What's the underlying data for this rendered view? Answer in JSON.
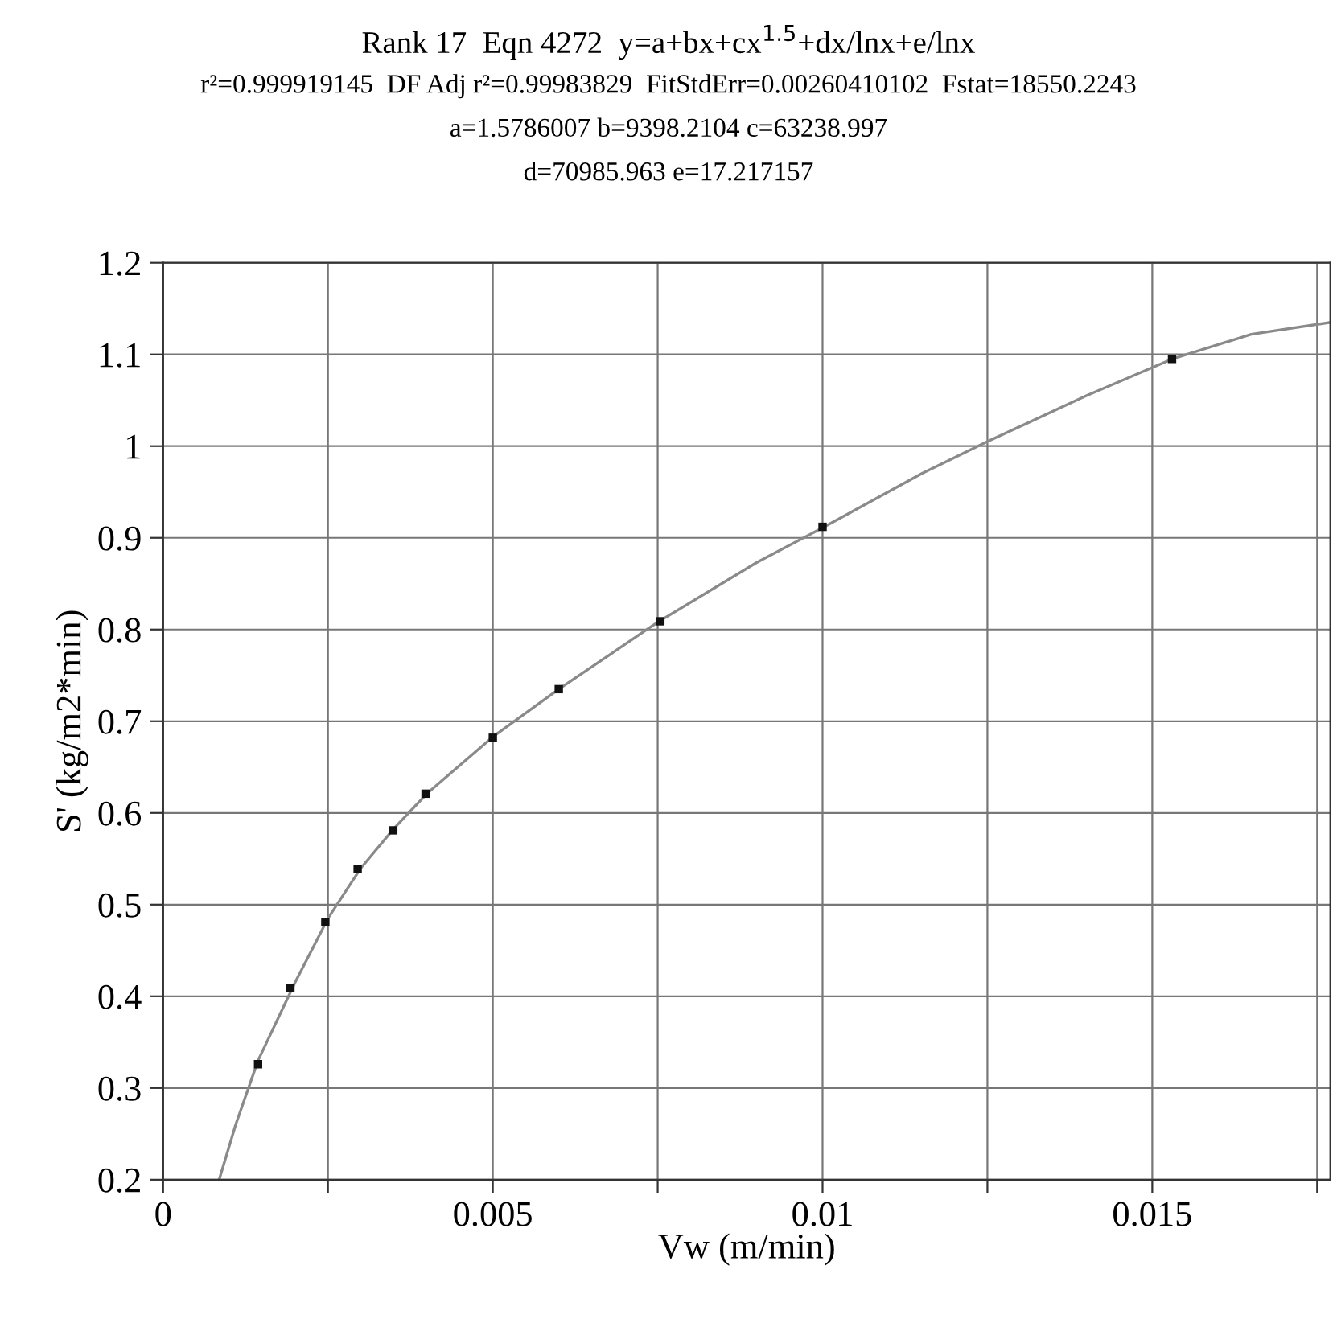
{
  "chart_data": {
    "type": "scatter",
    "title": "Rank 17  Eqn 4272  y=a+bx+cx$^{1.5}$+dx/lnx+e/lnx",
    "subtitle": "r²=0.999919145  DF Adj r²=0.99983829  FitStdErr=0.00260410102  Fstat=18550.2243",
    "annotations": [
      "a=1.5786007 b=9398.2104 c=63238.997",
      "d=70985.963 e=17.217157"
    ],
    "xlabel": "Vw (m/min)",
    "ylabel": "S' (kg/m2*min)",
    "series": [
      {
        "color": "#111111",
        "marker": "square",
        "x": [
          0.00144,
          0.00193,
          0.00246,
          0.00295,
          0.00349,
          0.00398,
          0.005,
          0.006,
          0.00754,
          0.01,
          0.0153
        ],
        "values": [
          0.326,
          0.409,
          0.481,
          0.539,
          0.581,
          0.621,
          0.682,
          0.735,
          0.809,
          0.912,
          1.095
        ]
      },
      {
        "type": "line",
        "color": "#8a8a8a",
        "line_style": "solid",
        "x": [
          0.00085,
          0.0011,
          0.00144,
          0.002,
          0.0025,
          0.003,
          0.0035,
          0.004,
          0.005,
          0.006,
          0.0075,
          0.009,
          0.01,
          0.0115,
          0.0125,
          0.014,
          0.0153,
          0.0165,
          0.0177
        ],
        "values": [
          0.2,
          0.26,
          0.33,
          0.415,
          0.485,
          0.54,
          0.583,
          0.621,
          0.683,
          0.735,
          0.808,
          0.873,
          0.911,
          0.97,
          1.005,
          1.055,
          1.095,
          1.122,
          1.135
        ]
      }
    ],
    "xlim": [
      0,
      0.0177
    ],
    "ylim": [
      0.2,
      1.2
    ],
    "xticks": [
      0,
      {
        "value": 0.0025,
        "label": null
      },
      0.005,
      {
        "value": 0.0075,
        "label": null
      },
      0.01,
      {
        "value": 0.0125,
        "label": null
      },
      0.015,
      {
        "value": 0.0175,
        "label": null
      }
    ],
    "yticks": [
      0.2,
      0.3,
      0.4,
      0.5,
      0.6,
      0.7,
      0.8,
      0.9,
      1,
      1.1,
      1.2
    ],
    "grid": true
  }
}
